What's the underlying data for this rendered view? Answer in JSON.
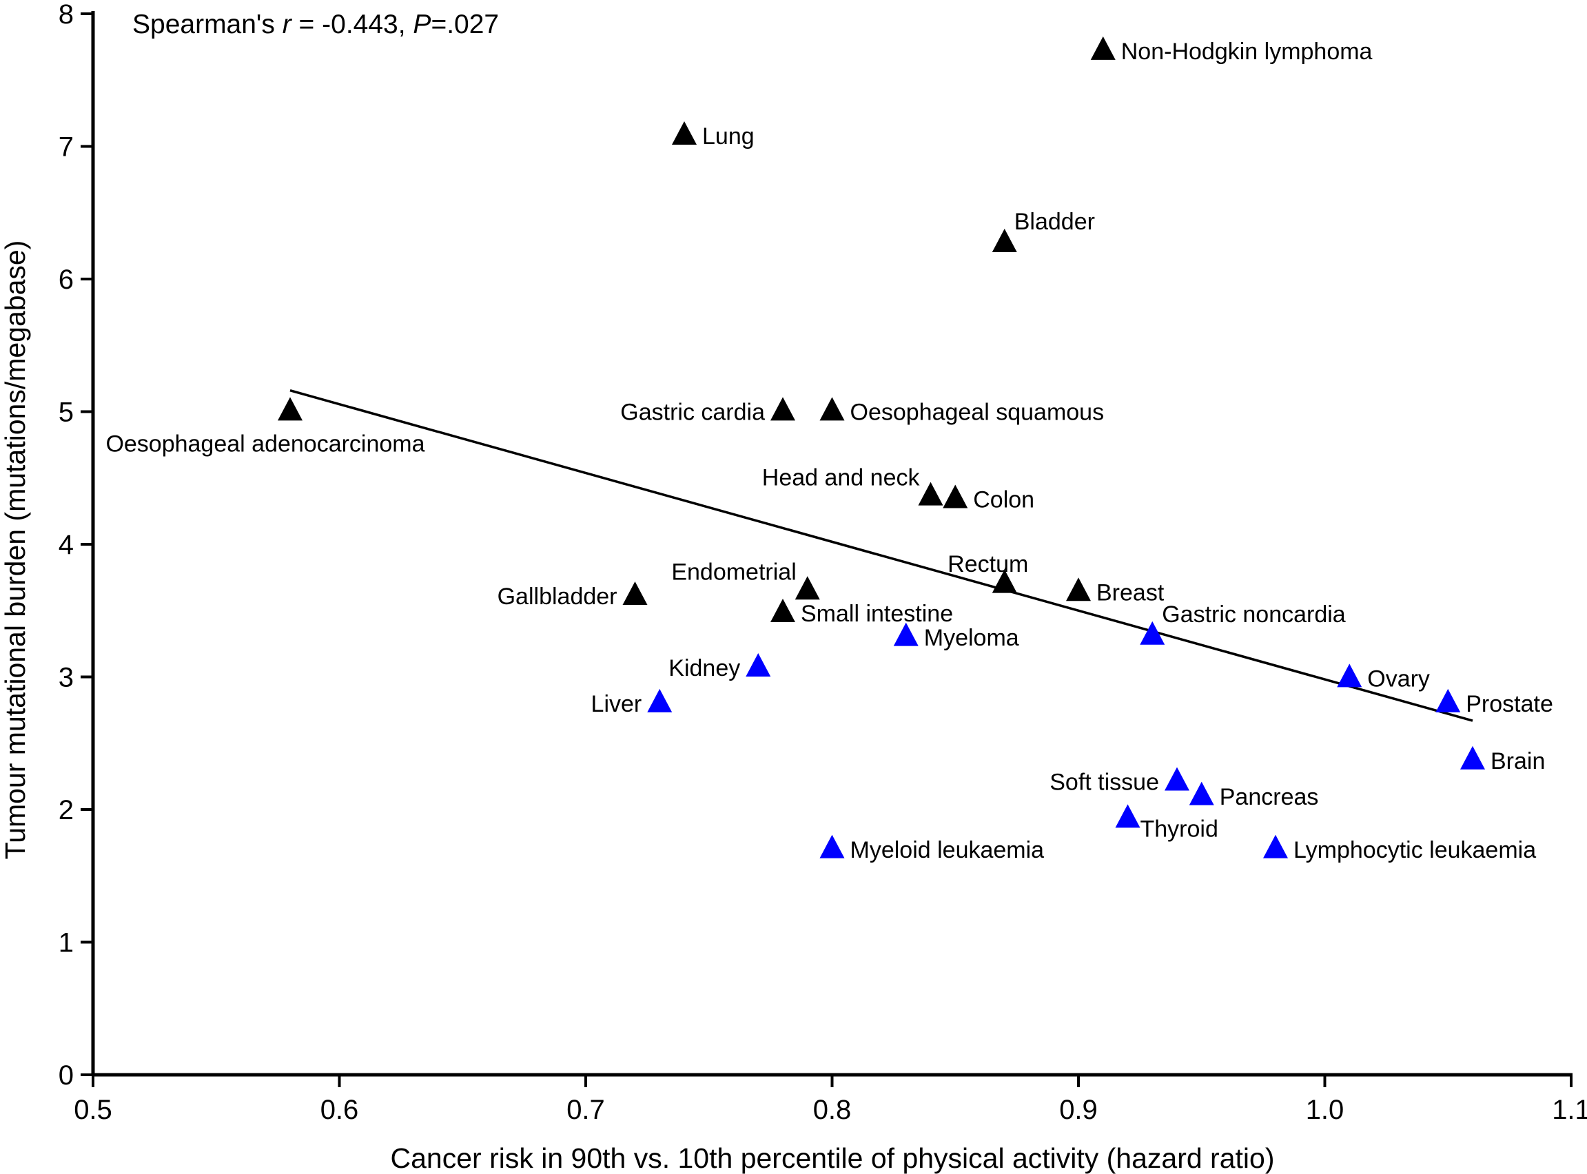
{
  "chart_data": {
    "type": "scatter",
    "title": "",
    "xlabel": "Cancer risk in 90th vs. 10th percentile of physical activity (hazard ratio)",
    "ylabel": "Tumour mutational burden (mutations/megabase)",
    "xlim": [
      0.5,
      1.1
    ],
    "ylim": [
      0,
      8
    ],
    "x_ticks": [
      "0.5",
      "0.6",
      "0.7",
      "0.8",
      "0.9",
      "1.0",
      "1.1"
    ],
    "y_ticks": [
      "0",
      "1",
      "2",
      "3",
      "4",
      "5",
      "6",
      "7",
      "8"
    ],
    "grid": false,
    "annotation": {
      "prefix": "Spearman's ",
      "r_symbol": "r",
      "r_value": " = -0.443, ",
      "p_symbol": "P",
      "p_value": "=.027"
    },
    "colors": {
      "black": "#000000",
      "blue": "#0000ff"
    },
    "trend_line": {
      "x": [
        0.58,
        1.06
      ],
      "y": [
        5.16,
        2.67
      ]
    },
    "series": [
      {
        "name": "black",
        "color": "#000000",
        "points": [
          {
            "label": "Non-Hodgkin lymphoma",
            "x": 0.91,
            "y": 7.72,
            "anchor": "right"
          },
          {
            "label": "Lung",
            "x": 0.74,
            "y": 7.08,
            "anchor": "right"
          },
          {
            "label": "Bladder",
            "x": 0.87,
            "y": 6.27,
            "anchor": "upper-right"
          },
          {
            "label": "Oesophageal adenocarcinoma",
            "x": 0.58,
            "y": 5.0,
            "anchor": "below"
          },
          {
            "label": "Gastric cardia",
            "x": 0.78,
            "y": 5.0,
            "anchor": "left"
          },
          {
            "label": "Oesophageal squamous",
            "x": 0.8,
            "y": 5.0,
            "anchor": "right"
          },
          {
            "label": "Head and neck",
            "x": 0.84,
            "y": 4.36,
            "anchor": "upper-left"
          },
          {
            "label": "Colon",
            "x": 0.85,
            "y": 4.34,
            "anchor": "right"
          },
          {
            "label": "Rectum",
            "x": 0.87,
            "y": 3.7,
            "anchor": "above"
          },
          {
            "label": "Breast",
            "x": 0.9,
            "y": 3.64,
            "anchor": "right"
          },
          {
            "label": "Gallbladder",
            "x": 0.72,
            "y": 3.61,
            "anchor": "left"
          },
          {
            "label": "Endometrial",
            "x": 0.79,
            "y": 3.65,
            "anchor": "upper-left"
          },
          {
            "label": "Small intestine",
            "x": 0.78,
            "y": 3.48,
            "anchor": "right"
          }
        ]
      },
      {
        "name": "blue",
        "color": "#0000ff",
        "points": [
          {
            "label": "Gastric noncardia",
            "x": 0.93,
            "y": 3.31,
            "anchor": "upper-right"
          },
          {
            "label": "Myeloma",
            "x": 0.83,
            "y": 3.3,
            "anchor": "right"
          },
          {
            "label": "Kidney",
            "x": 0.77,
            "y": 3.07,
            "anchor": "left"
          },
          {
            "label": "Liver",
            "x": 0.73,
            "y": 2.8,
            "anchor": "left"
          },
          {
            "label": "Ovary",
            "x": 1.01,
            "y": 2.99,
            "anchor": "right"
          },
          {
            "label": "Prostate",
            "x": 1.05,
            "y": 2.8,
            "anchor": "right"
          },
          {
            "label": "Brain",
            "x": 1.06,
            "y": 2.37,
            "anchor": "right"
          },
          {
            "label": "Soft tissue",
            "x": 0.94,
            "y": 2.21,
            "anchor": "left"
          },
          {
            "label": "Pancreas",
            "x": 0.95,
            "y": 2.1,
            "anchor": "right"
          },
          {
            "label": "Thyroid",
            "x": 0.92,
            "y": 1.93,
            "anchor": "lower-right"
          },
          {
            "label": "Myeloid leukaemia",
            "x": 0.8,
            "y": 1.7,
            "anchor": "right"
          },
          {
            "label": "Lymphocytic leukaemia",
            "x": 0.98,
            "y": 1.7,
            "anchor": "right"
          }
        ]
      }
    ]
  }
}
